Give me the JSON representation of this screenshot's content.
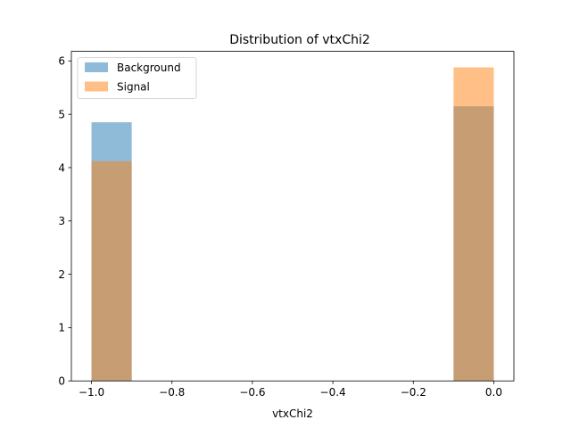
{
  "chart_data": {
    "type": "bar",
    "title": "Distribution of vtxChi2",
    "xlabel": "vtxChi2",
    "ylabel": "",
    "xlim": [
      -1.05,
      0.05
    ],
    "ylim": [
      0,
      6.18
    ],
    "xticks": [
      -1.0,
      -0.8,
      -0.6,
      -0.4,
      -0.2,
      0.0
    ],
    "xtick_labels": [
      "−1.0",
      "−0.8",
      "−0.6",
      "−0.4",
      "−0.2",
      "0.0"
    ],
    "yticks": [
      0,
      1,
      2,
      3,
      4,
      5,
      6
    ],
    "ytick_labels": [
      "0",
      "1",
      "2",
      "3",
      "4",
      "5",
      "6"
    ],
    "grid": false,
    "legend_position": "top-left",
    "series": [
      {
        "name": "Background",
        "color": "#1f77b4",
        "alpha": 0.5,
        "bins": [
          {
            "x0": -1.0,
            "x1": -0.9,
            "value": 4.85
          },
          {
            "x0": -0.1,
            "x1": 0.0,
            "value": 5.15
          }
        ]
      },
      {
        "name": "Signal",
        "color": "#ff7f0e",
        "alpha": 0.5,
        "bins": [
          {
            "x0": -1.0,
            "x1": -0.9,
            "value": 4.12
          },
          {
            "x0": -0.1,
            "x1": 0.0,
            "value": 5.88
          }
        ]
      }
    ]
  }
}
